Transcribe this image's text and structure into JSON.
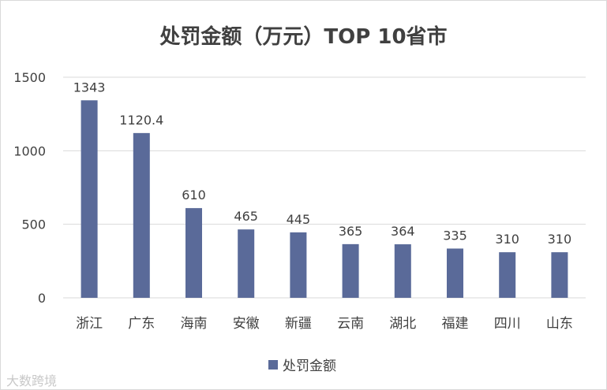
{
  "chart_data": {
    "type": "bar",
    "title": "处罚金额（万元）TOP 10省市",
    "categories": [
      "浙江",
      "广东",
      "海南",
      "安徽",
      "新疆",
      "云南",
      "湖北",
      "福建",
      "四川",
      "山东"
    ],
    "series": [
      {
        "name": "处罚金额",
        "values": [
          1343,
          1120.4,
          610,
          465,
          445,
          365,
          364,
          335,
          310,
          310
        ]
      }
    ],
    "data_labels": [
      "1343",
      "1120.4",
      "610",
      "465",
      "445",
      "365",
      "364",
      "335",
      "310",
      "310"
    ],
    "yticks": [
      "0",
      "500",
      "1000",
      "1500"
    ],
    "ytick_values": [
      0,
      500,
      1000,
      1500
    ],
    "ylim": [
      0,
      1500
    ],
    "grid": true,
    "legend_position": "bottom",
    "colors": {
      "bar": "#5a6a99",
      "grid": "#d9d9d9",
      "text": "#404040"
    }
  },
  "watermark": "大数跨境"
}
